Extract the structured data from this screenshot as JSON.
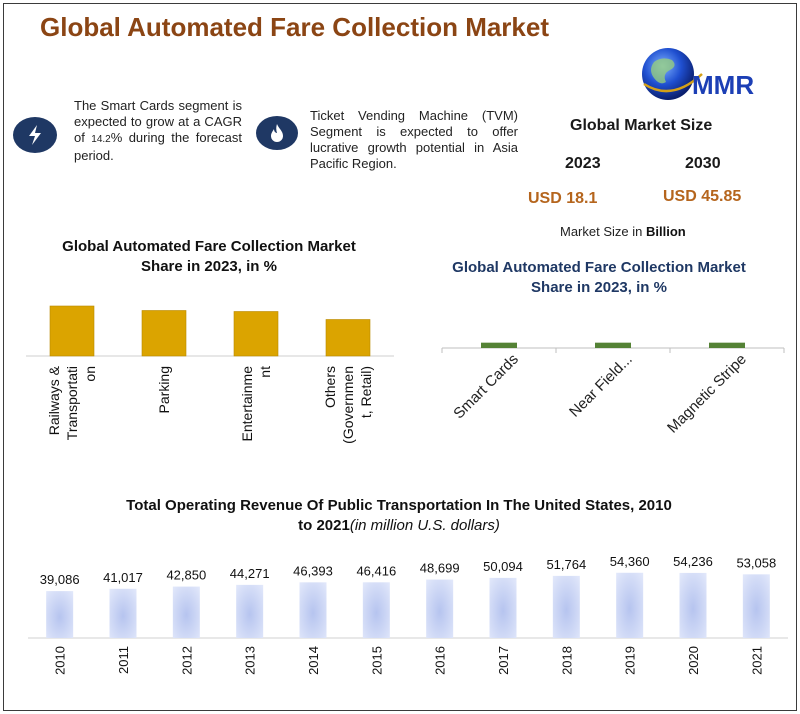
{
  "header": {
    "title": "Global Automated Fare Collection Market"
  },
  "logo": {
    "text": "MMR"
  },
  "notes": {
    "smart_cards": {
      "icon": "lightning-icon",
      "pre": "The Smart Cards segment is expected to grow at a CAGR of ",
      "cagr": "14.2",
      "post": "% during the forecast period."
    },
    "tvm": {
      "icon": "flame-icon",
      "text": "Ticket Vending Machine (TVM) Segment is expected to offer lucrative growth potential in Asia Pacific Region."
    }
  },
  "market_size": {
    "title": "Global Market Size",
    "years": [
      "2023",
      "2030"
    ],
    "values": [
      "USD 18.1",
      "USD 45.85"
    ],
    "unit_prefix": "Market Size in ",
    "unit_bold": "Billion"
  },
  "colors": {
    "gold": "#dba400",
    "green": "#548235",
    "title_brown": "#8b4514",
    "navy": "#1f3864",
    "value_orange": "#b5651d"
  },
  "chart_titles": {
    "application": [
      "Global Automated Fare Collection Market",
      "Share in 2023, in %"
    ],
    "technology": [
      "Global Automated Fare Collection Market",
      "Share in 2023, in %"
    ],
    "revenue": [
      "Total Operating Revenue Of Public Transportation In The United States, 2010",
      "to 2021",
      "(in million U.S. dollars)"
    ]
  },
  "chart_data": [
    {
      "type": "bar",
      "title": "Global Automated Fare Collection Market Share in 2023, in %",
      "categories": [
        "Railways & Transportati on",
        "Parking",
        "Entertainme nt",
        "Others (Governmen t, Retail)"
      ],
      "category_lines": [
        [
          "Railways &",
          "Transportati",
          "on"
        ],
        [
          "Parking"
        ],
        [
          "Entertainme",
          "nt"
        ],
        [
          "Others",
          "(Governmen",
          "t, Retail)"
        ]
      ],
      "values": [
        100,
        91,
        89,
        73
      ],
      "ylim": [
        0,
        100
      ],
      "grid": false
    },
    {
      "type": "bar",
      "title": "Global Automated Fare Collection Market Share in 2023, in %",
      "categories": [
        "Smart Cards",
        "Near Field...",
        "Magnetic Stripe"
      ],
      "values": [
        1,
        1,
        1
      ],
      "ylim": [
        0,
        3
      ],
      "grid": false
    },
    {
      "type": "bar",
      "title": "Total Operating Revenue Of Public Transportation In The United States, 2010 to 2021(in million U.S. dollars)",
      "categories": [
        "2010",
        "2011",
        "2012",
        "2013",
        "2014",
        "2015",
        "2016",
        "2017",
        "2018",
        "2019",
        "2020",
        "2021"
      ],
      "values": [
        39086,
        41017,
        42850,
        44271,
        46393,
        46416,
        48699,
        50094,
        51764,
        54360,
        54236,
        53058
      ],
      "labels": [
        "39,086",
        "41,017",
        "42,850",
        "44,271",
        "46,393",
        "46,416",
        "48,699",
        "50,094",
        "51,764",
        "54,360",
        "54,236",
        "53,058"
      ],
      "ylim": [
        0,
        55000
      ],
      "grid": false
    }
  ]
}
